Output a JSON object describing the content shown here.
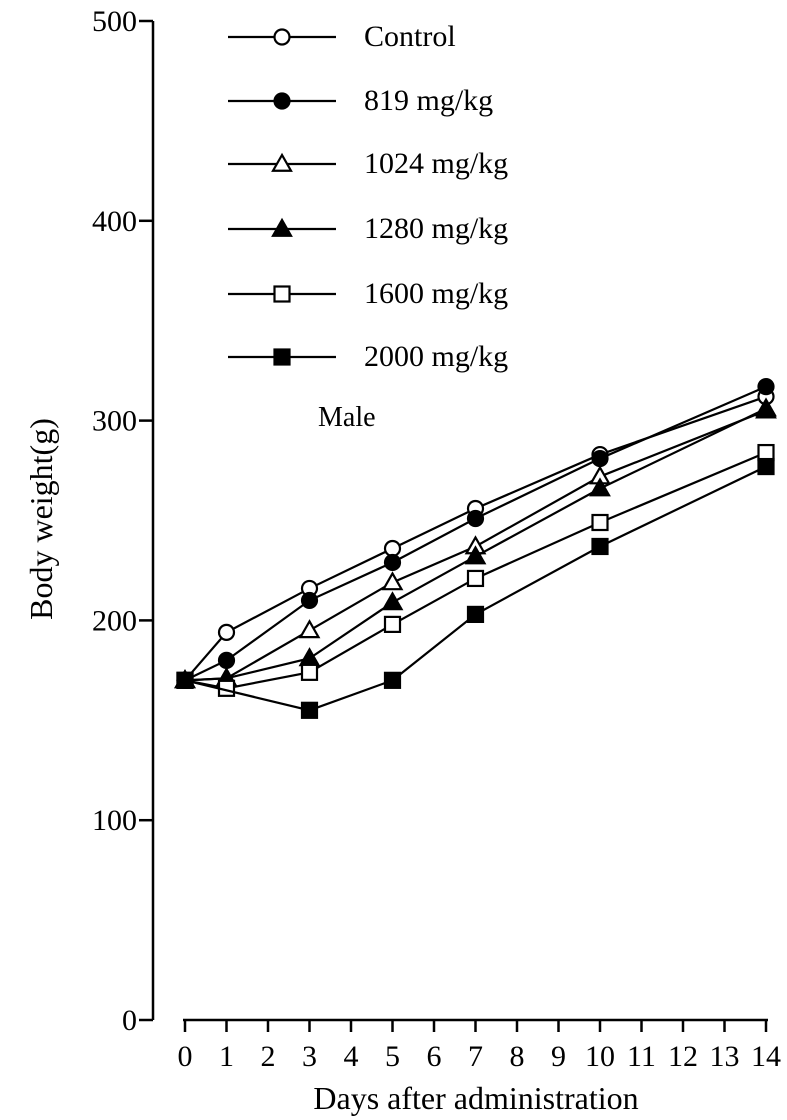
{
  "chart_data": {
    "type": "line",
    "title": "",
    "xlabel": "Days after administration",
    "ylabel": "Body weight(g)",
    "xlim": [
      0,
      14
    ],
    "ylim": [
      0,
      500
    ],
    "x_ticks": [
      0,
      1,
      2,
      3,
      4,
      5,
      6,
      7,
      8,
      9,
      10,
      11,
      12,
      13,
      14
    ],
    "y_ticks": [
      0,
      100,
      200,
      300,
      400,
      500
    ],
    "grid": false,
    "legend_position": "top-left",
    "annotation": "Male",
    "series": [
      {
        "name": "Control",
        "marker": "circle-open",
        "x": [
          0,
          1,
          3,
          5,
          7,
          10,
          14
        ],
        "y": [
          170,
          194,
          216,
          236,
          256,
          283,
          312
        ]
      },
      {
        "name": "819 mg/kg",
        "marker": "circle-filled",
        "x": [
          0,
          1,
          3,
          5,
          7,
          10,
          14
        ],
        "y": [
          170,
          180,
          210,
          229,
          251,
          281,
          317
        ]
      },
      {
        "name": "1024 mg/kg",
        "marker": "triangle-open",
        "x": [
          0,
          1,
          3,
          5,
          7,
          10,
          14
        ],
        "y": [
          170,
          171,
          195,
          219,
          237,
          272,
          305
        ]
      },
      {
        "name": "1280 mg/kg",
        "marker": "triangle-filled",
        "x": [
          0,
          1,
          3,
          5,
          7,
          10,
          14
        ],
        "y": [
          170,
          171,
          181,
          209,
          232,
          266,
          306
        ]
      },
      {
        "name": "1600 mg/kg",
        "marker": "square-open",
        "x": [
          0,
          1,
          3,
          5,
          7,
          10,
          14
        ],
        "y": [
          170,
          166,
          174,
          198,
          221,
          249,
          284
        ]
      },
      {
        "name": "2000 mg/kg",
        "marker": "square-filled",
        "x": [
          0,
          3,
          5,
          7,
          10,
          14
        ],
        "y": [
          170,
          155,
          170,
          203,
          237,
          277
        ]
      }
    ]
  }
}
